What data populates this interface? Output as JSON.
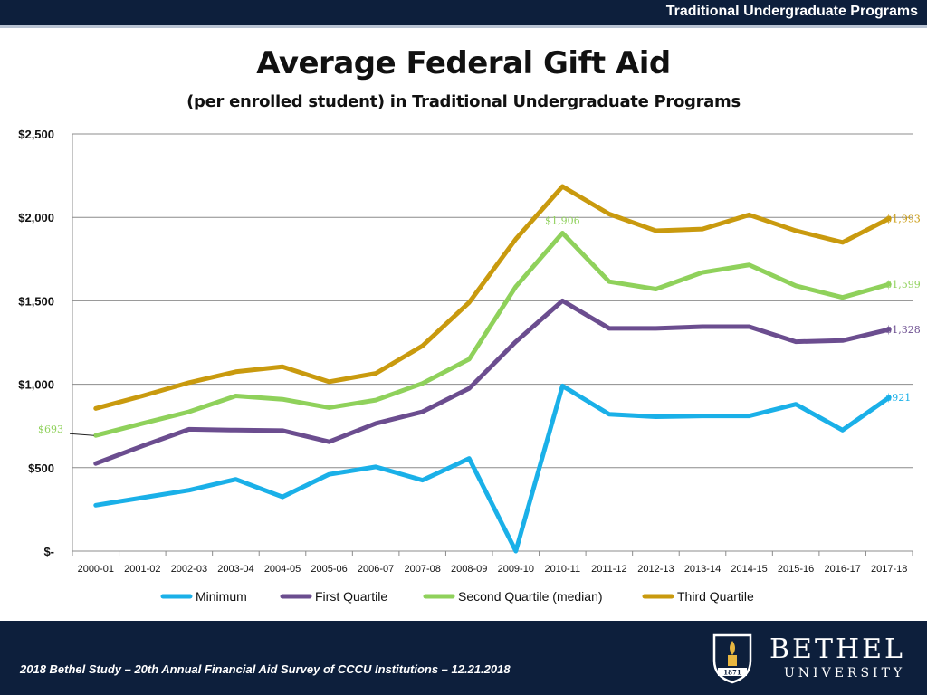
{
  "header": {
    "section_label": "Traditional Undergraduate Programs"
  },
  "footer": {
    "citation": "2018 Bethel Study – 20th Annual Financial Aid Survey of CCCU Institutions – 12.21.2018",
    "logo_name": "BETHEL",
    "logo_sub": "UNIVERSITY",
    "logo_year": "1871"
  },
  "colors": {
    "navy": "#0d1f3c",
    "minimum": "#1ab0e8",
    "first_quartile": "#6b4d8f",
    "second_quartile": "#8fd15b",
    "third_quartile": "#c99a0e"
  },
  "chart_data": {
    "type": "line",
    "title": "Average Federal Gift Aid",
    "subtitle": "(per enrolled student) in Traditional Undergraduate Programs",
    "xlabel": "",
    "ylabel": "",
    "ylim": [
      0,
      2500
    ],
    "y_ticks": [
      {
        "value": 0,
        "label": "$-"
      },
      {
        "value": 500,
        "label": "$500"
      },
      {
        "value": 1000,
        "label": "$1,000"
      },
      {
        "value": 1500,
        "label": "$1,500"
      },
      {
        "value": 2000,
        "label": "$2,000"
      },
      {
        "value": 2500,
        "label": "$2,500"
      }
    ],
    "categories": [
      "2000-01",
      "2001-02",
      "2002-03",
      "2003-04",
      "2004-05",
      "2005-06",
      "2006-07",
      "2007-08",
      "2008-09",
      "2009-10",
      "2010-11",
      "2011-12",
      "2012-13",
      "2013-14",
      "2014-15",
      "2015-16",
      "2016-17",
      "2017-18"
    ],
    "legend_position": "bottom",
    "series": [
      {
        "name": "Minimum",
        "key": "minimum",
        "values": [
          275,
          320,
          365,
          430,
          325,
          460,
          505,
          425,
          555,
          0,
          990,
          820,
          805,
          810,
          810,
          880,
          725,
          921
        ]
      },
      {
        "name": "First Quartile",
        "key": "first_quartile",
        "values": [
          525,
          630,
          730,
          725,
          722,
          655,
          765,
          835,
          975,
          1255,
          1500,
          1335,
          1335,
          1345,
          1345,
          1255,
          1262,
          1328
        ]
      },
      {
        "name": "Second Quartile (median)",
        "key": "second_quartile",
        "values": [
          693,
          765,
          835,
          930,
          910,
          860,
          905,
          1005,
          1150,
          1585,
          1906,
          1615,
          1570,
          1670,
          1715,
          1590,
          1520,
          1599
        ]
      },
      {
        "name": "Third Quartile",
        "key": "third_quartile",
        "values": [
          855,
          930,
          1010,
          1075,
          1105,
          1015,
          1065,
          1230,
          1490,
          1870,
          2185,
          2020,
          1920,
          1930,
          2015,
          1920,
          1850,
          1993
        ]
      }
    ],
    "data_labels": [
      {
        "series": "second_quartile",
        "index": 0,
        "text": "$693",
        "side": "left"
      },
      {
        "series": "second_quartile",
        "index": 10,
        "text": "$1,906",
        "side": "above"
      },
      {
        "series": "third_quartile",
        "index": 17,
        "text": "$1,993",
        "side": "right"
      },
      {
        "series": "second_quartile",
        "index": 17,
        "text": "$1,599",
        "side": "right"
      },
      {
        "series": "first_quartile",
        "index": 17,
        "text": "$1,328",
        "side": "right"
      },
      {
        "series": "minimum",
        "index": 17,
        "text": "$921",
        "side": "right"
      }
    ]
  }
}
